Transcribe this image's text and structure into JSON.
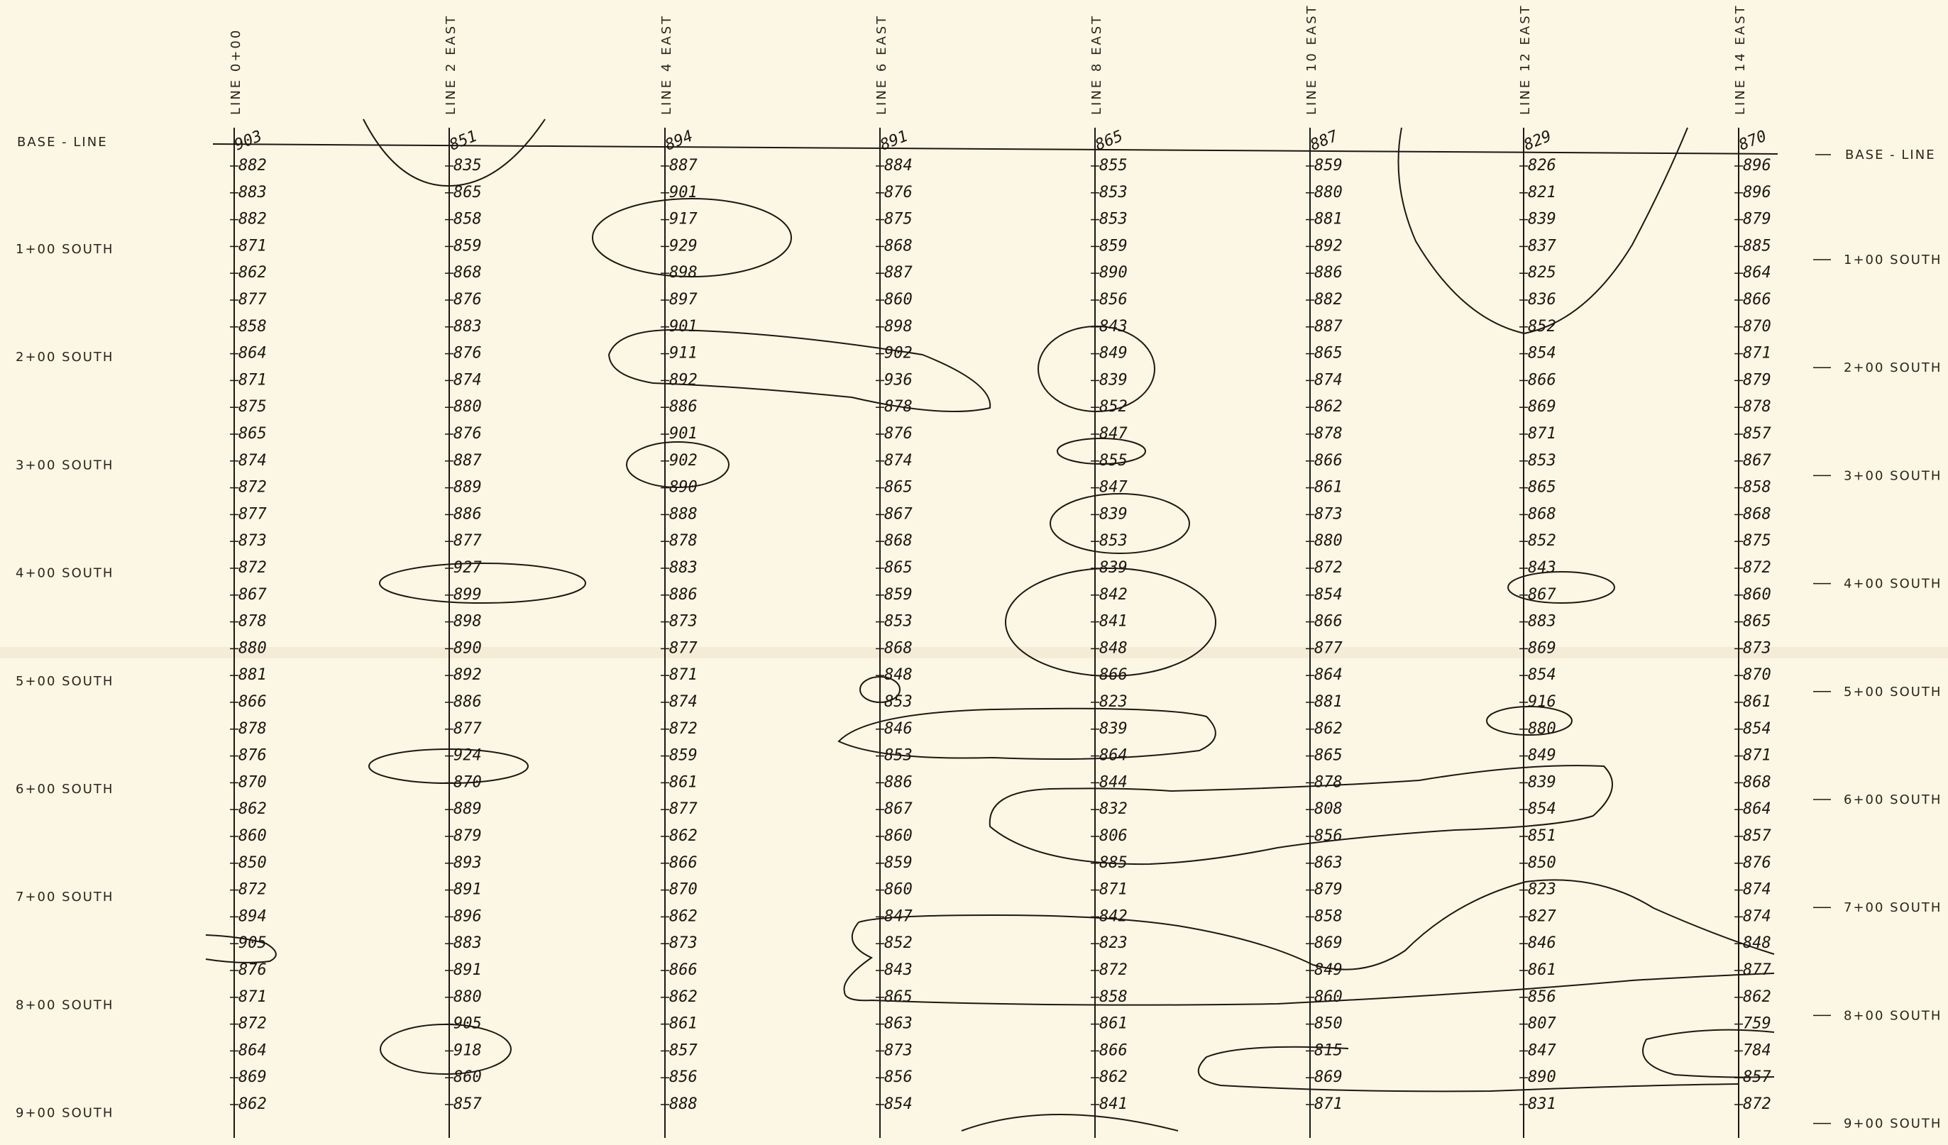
{
  "baseline_label": "BASE - LINE",
  "lines": [
    {
      "title": "LINE  0+00",
      "top": "903",
      "values": [
        "882",
        "883",
        "882",
        "871",
        "862",
        "877",
        "858",
        "864",
        "871",
        "875",
        "865",
        "874",
        "872",
        "877",
        "873",
        "872",
        "867",
        "878",
        "880",
        "881",
        "866",
        "878",
        "876",
        "870",
        "862",
        "860",
        "850",
        "872",
        "894",
        "905",
        "876",
        "871",
        "872",
        "864",
        "869",
        "862"
      ]
    },
    {
      "title": "LINE  2  EAST",
      "top": "851",
      "values": [
        "835",
        "865",
        "858",
        "859",
        "868",
        "876",
        "883",
        "876",
        "874",
        "880",
        "876",
        "887",
        "889",
        "886",
        "877",
        "927",
        "899",
        "898",
        "890",
        "892",
        "886",
        "877",
        "924",
        "870",
        "889",
        "879",
        "893",
        "891",
        "896",
        "883",
        "891",
        "880",
        "905",
        "918",
        "860",
        "857"
      ]
    },
    {
      "title": "LINE  4  EAST",
      "top": "894",
      "values": [
        "887",
        "901",
        "917",
        "929",
        "898",
        "897",
        "901",
        "911",
        "892",
        "886",
        "901",
        "902",
        "890",
        "888",
        "878",
        "883",
        "886",
        "873",
        "877",
        "871",
        "874",
        "872",
        "859",
        "861",
        "877",
        "862",
        "866",
        "870",
        "862",
        "873",
        "866",
        "862",
        "861",
        "857",
        "856",
        "888"
      ]
    },
    {
      "title": "LINE  6  EAST",
      "top": "891",
      "values": [
        "884",
        "876",
        "875",
        "868",
        "887",
        "860",
        "898",
        "902",
        "936",
        "878",
        "876",
        "874",
        "865",
        "867",
        "868",
        "865",
        "859",
        "853",
        "868",
        "848",
        "853",
        "846",
        "853",
        "886",
        "867",
        "860",
        "859",
        "860",
        "847",
        "852",
        "843",
        "865",
        "863",
        "873",
        "856",
        "854"
      ]
    },
    {
      "title": "LINE  8  EAST",
      "top": "865",
      "values": [
        "855",
        "853",
        "853",
        "859",
        "890",
        "856",
        "843",
        "849",
        "839",
        "852",
        "847",
        "855",
        "847",
        "839",
        "853",
        "839",
        "842",
        "841",
        "848",
        "866",
        "823",
        "839",
        "864",
        "844",
        "832",
        "806",
        "885",
        "871",
        "842",
        "823",
        "872",
        "858",
        "861",
        "866",
        "862",
        "841"
      ]
    },
    {
      "title": "LINE  10  EAST",
      "top": "887",
      "values": [
        "859",
        "880",
        "881",
        "892",
        "886",
        "882",
        "887",
        "865",
        "874",
        "862",
        "878",
        "866",
        "861",
        "873",
        "880",
        "872",
        "854",
        "866",
        "877",
        "864",
        "881",
        "862",
        "865",
        "878",
        "808",
        "856",
        "863",
        "879",
        "858",
        "869",
        "849",
        "860",
        "850",
        "815",
        "869",
        "871"
      ]
    },
    {
      "title": "LINE  12  EAST",
      "top": "829",
      "values": [
        "826",
        "821",
        "839",
        "837",
        "825",
        "836",
        "852",
        "854",
        "866",
        "869",
        "871",
        "853",
        "865",
        "868",
        "852",
        "843",
        "867",
        "883",
        "869",
        "854",
        "916",
        "880",
        "849",
        "839",
        "854",
        "851",
        "850",
        "823",
        "827",
        "846",
        "861",
        "856",
        "807",
        "847",
        "890",
        "831"
      ]
    },
    {
      "title": "LINE  14  EAST",
      "top": "870",
      "values": [
        "896",
        "896",
        "879",
        "885",
        "864",
        "866",
        "870",
        "871",
        "879",
        "878",
        "857",
        "867",
        "858",
        "868",
        "875",
        "872",
        "860",
        "865",
        "873",
        "870",
        "861",
        "854",
        "871",
        "868",
        "864",
        "857",
        "876",
        "874",
        "874",
        "848",
        "877",
        "862",
        "759",
        "784",
        "857",
        "872"
      ]
    }
  ],
  "rows": [
    "1+00  SOUTH",
    "2+00  SOUTH",
    "3+00  SOUTH",
    "4+00  SOUTH",
    "5+00  SOUTH",
    "6+00  SOUTH",
    "7+00  SOUTH",
    "8+00  SOUTH",
    "9+00  SOUTH"
  ]
}
